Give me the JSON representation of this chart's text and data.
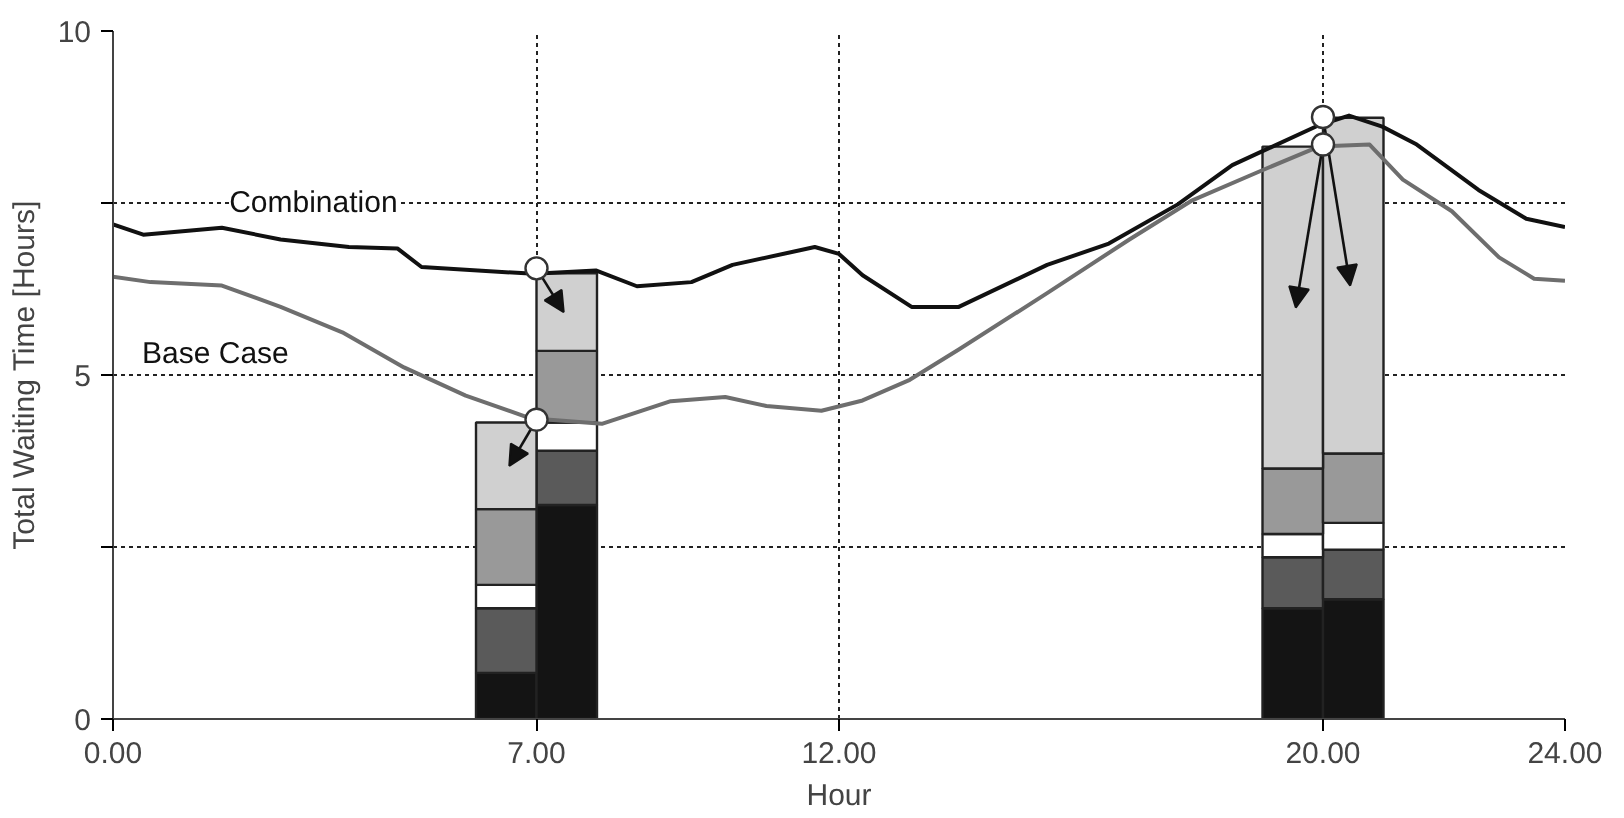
{
  "chart_data": {
    "type": "bar",
    "xlabel": "Hour",
    "ylabel": "Total Waiting Time [Hours]",
    "stacked": true,
    "x": [
      6.5,
      7.5,
      19.5,
      20.5
    ],
    "xlim": [
      0,
      24
    ],
    "xticks": [
      {
        "value": 0,
        "label": "0.00"
      },
      {
        "value": 7,
        "label": "7.00"
      },
      {
        "value": 12,
        "label": "12.00"
      },
      {
        "value": 20,
        "label": "20.00"
      },
      {
        "value": 24,
        "label": "24.00"
      }
    ],
    "ylim": [
      0,
      10
    ],
    "yticks": [
      0,
      {
        "value": 2.5,
        "label": null
      },
      5,
      {
        "value": 7.5,
        "label": null
      },
      10
    ],
    "grid": true,
    "series": [
      {
        "color": "#141414",
        "values": [
          0.67,
          3.11,
          1.61,
          1.74
        ]
      },
      {
        "color": "#5a5a5a",
        "values": [
          0.94,
          0.79,
          0.74,
          0.72
        ]
      },
      {
        "color": "#ffffff",
        "values": [
          0.34,
          0.41,
          0.34,
          0.39
        ]
      },
      {
        "color": "#999999",
        "values": [
          1.1,
          1.04,
          0.95,
          1.01
        ]
      },
      {
        "color": "#d0d0d0",
        "values": [
          1.26,
          1.13,
          4.68,
          4.88
        ]
      },
      {
        "type": "line",
        "name": "Combination",
        "color": "#111111",
        "x": [
          0,
          0.5,
          1.8,
          2.77,
          3.9,
          4.7,
          5.1,
          6.96,
          7.98,
          8.66,
          9.56,
          10.24,
          11.6,
          12.0,
          12.39,
          13.2,
          13.98,
          15.44,
          16.46,
          17.6,
          18.5,
          19.93,
          20.43,
          20.98,
          21.55,
          22.57,
          23.36,
          24
        ],
        "values": [
          7.19,
          7.04,
          7.14,
          6.97,
          6.86,
          6.84,
          6.57,
          6.47,
          6.52,
          6.29,
          6.35,
          6.6,
          6.86,
          6.76,
          6.45,
          5.99,
          5.99,
          6.6,
          6.91,
          7.48,
          8.05,
          8.63,
          8.77,
          8.61,
          8.35,
          7.69,
          7.27,
          7.15
        ]
      },
      {
        "type": "line",
        "name": "Base Case",
        "color": "#6e6e6e",
        "x": [
          0,
          0.62,
          1.8,
          2.77,
          3.79,
          4.81,
          5.83,
          6.9,
          8.08,
          9.22,
          10.12,
          10.8,
          11.71,
          12.39,
          13.17,
          13.98,
          15.44,
          16.8,
          17.82,
          18.9,
          19.93,
          20.77,
          21.32,
          22.13,
          22.91,
          23.49,
          24
        ],
        "values": [
          6.43,
          6.35,
          6.3,
          5.99,
          5.62,
          5.11,
          4.7,
          4.37,
          4.29,
          4.62,
          4.68,
          4.55,
          4.48,
          4.63,
          4.93,
          5.37,
          6.19,
          6.97,
          7.53,
          7.94,
          8.32,
          8.35,
          7.84,
          7.38,
          6.71,
          6.4,
          6.37
        ]
      },
      {
        "type": "scatter",
        "color": "#ffffff",
        "marker": "circle",
        "x": [
          7,
          7,
          20,
          20
        ],
        "values": [
          4.35,
          6.55,
          8.35,
          8.75
        ]
      }
    ]
  }
}
